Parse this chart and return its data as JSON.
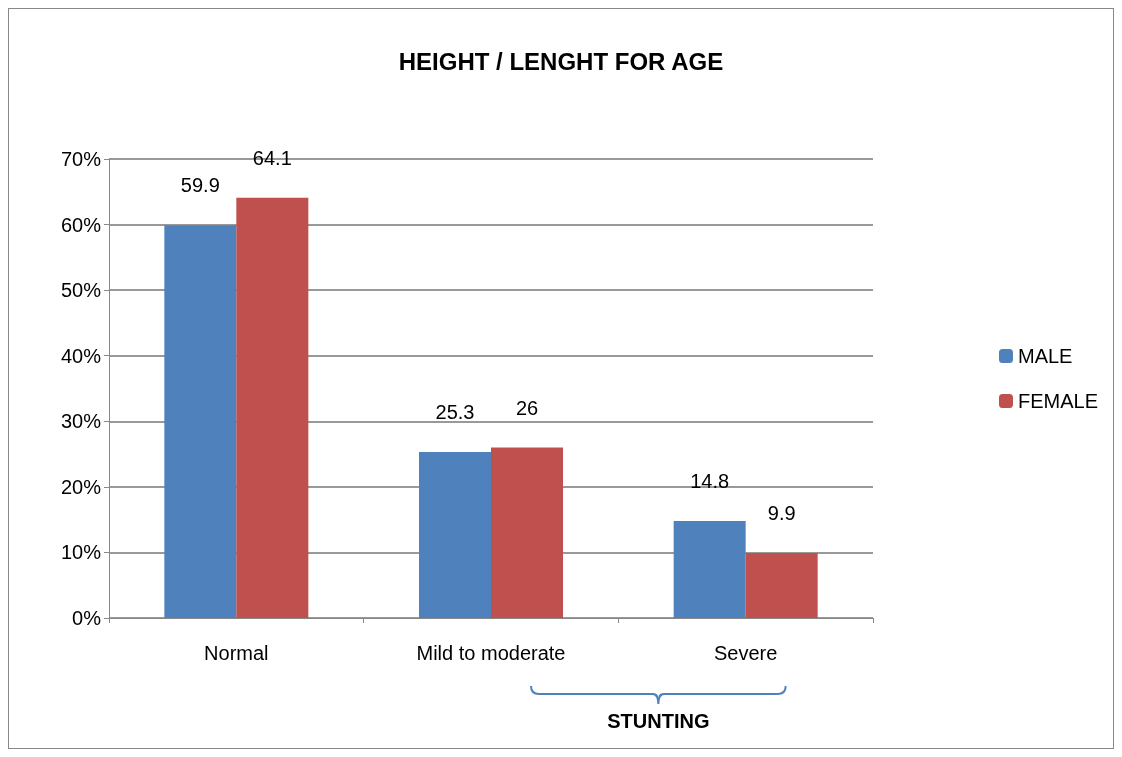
{
  "chart_data": {
    "type": "bar",
    "title": "HEIGHT / LENGHT FOR AGE",
    "categories": [
      "Normal",
      "Mild to moderate",
      "Severe"
    ],
    "series": [
      {
        "name": "MALE",
        "color": "#4f81bd",
        "values": [
          59.9,
          25.3,
          14.8
        ]
      },
      {
        "name": "FEMALE",
        "color": "#c0504d",
        "values": [
          64.1,
          26,
          9.9
        ]
      }
    ],
    "ylim": [
      0,
      70
    ],
    "yticks": [
      {
        "value": 0,
        "label": "0%"
      },
      {
        "value": 10,
        "label": "10%"
      },
      {
        "value": 20,
        "label": "20%"
      },
      {
        "value": 30,
        "label": "30%"
      },
      {
        "value": 40,
        "label": "40%"
      },
      {
        "value": 50,
        "label": "50%"
      },
      {
        "value": 60,
        "label": "60%"
      },
      {
        "value": 70,
        "label": "70%"
      }
    ],
    "grid": true,
    "legend": "right",
    "data_labels": true,
    "annotations": [
      "STUNTING"
    ]
  }
}
